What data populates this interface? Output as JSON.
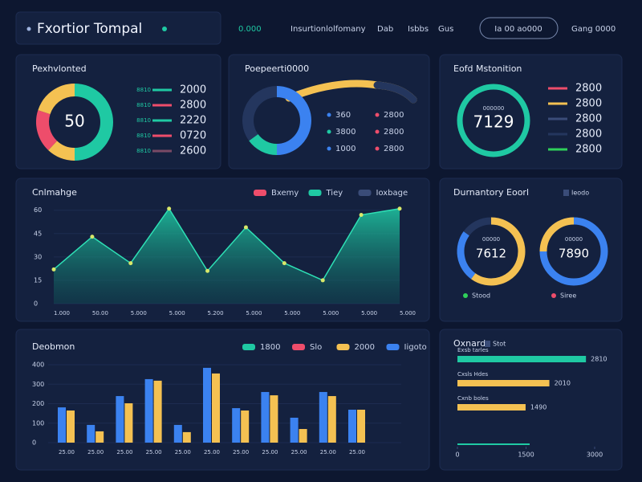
{
  "header": {
    "title": "Fxortior Tompal",
    "nav": [
      "0.000",
      "Insurtionlolfomany",
      "Dab",
      "Isbbs",
      "Gus"
    ],
    "button": "Ia 00 ao000",
    "user": "Gang 0000"
  },
  "chart_data": [
    {
      "type": "donut",
      "title": "Pexhvlonted",
      "center": 50,
      "values": [
        50,
        12,
        18,
        20
      ],
      "colors": [
        "#1fc9a3",
        "#f4c152",
        "#ee4d6b",
        "#f4c152"
      ],
      "legend": [
        {
          "name": "8810",
          "color": "#1fc9a3",
          "value": "2000"
        },
        {
          "name": "8810",
          "color": "#ee4d6b",
          "value": "2800"
        },
        {
          "name": "8810",
          "color": "#1fc9a3",
          "value": "2220"
        },
        {
          "name": "8810",
          "color": "#ee4d6b",
          "value": "0720"
        },
        {
          "name": "8810",
          "color": "#7a4a66",
          "value": "2600"
        }
      ]
    },
    {
      "type": "donut",
      "title": "Poepeerti0000",
      "values": [
        50,
        15,
        35
      ],
      "colors": [
        "#3b82f0",
        "#1fc9a3",
        "#24365e"
      ],
      "legend": [
        {
          "name": "360",
          "color": "#3b82f0"
        },
        {
          "name": "2800",
          "color": "#ee4d6b"
        },
        {
          "name": "3800",
          "color": "#1fc9a3"
        },
        {
          "name": "2800",
          "color": "#ee4d6b"
        },
        {
          "name": "1000",
          "color": "#3b82f0"
        },
        {
          "name": "2800",
          "color": "#ee4d6b"
        }
      ]
    },
    {
      "type": "donut",
      "title": "Eofd Mstonition",
      "center": "7129",
      "subtitle": "000000",
      "values": [
        100
      ],
      "colors": [
        "#1fc9a3"
      ],
      "legend": [
        {
          "color": "#ee4d6b",
          "value": "2800"
        },
        {
          "color": "#f4c152",
          "value": "2800"
        },
        {
          "color": "#3a4c78",
          "value": "2800"
        },
        {
          "color": "#24365e",
          "value": "2800"
        },
        {
          "color": "#2fd05a",
          "value": "2800"
        }
      ]
    },
    {
      "type": "area",
      "title": "Cnlmahge",
      "color": "#1fc9a3",
      "legend": [
        {
          "name": "Bxemy",
          "color": "#ee4d6b"
        },
        {
          "name": "Tiey",
          "color": "#1fc9a3"
        },
        {
          "name": "Ioxbage",
          "color": "#3a4c78"
        }
      ],
      "categories": [
        "1.000",
        "50.00",
        "5.000",
        "5.000",
        "5.200",
        "5.000",
        "5.000",
        "5.000",
        "5.000",
        "5.000"
      ],
      "values": [
        22,
        43,
        26,
        61,
        21,
        49,
        26,
        15,
        57,
        61
      ],
      "ylim": [
        0,
        65
      ],
      "yticks": [
        0,
        15,
        30,
        45,
        60
      ]
    },
    {
      "type": "donut",
      "title": "Durnantory Eoorl",
      "badge": "Ieodo",
      "center": "7612",
      "subtitle": "00000",
      "values": [
        60,
        25,
        15
      ],
      "colors": [
        "#f4c152",
        "#3b82f0",
        "#24365e"
      ],
      "legend": [
        {
          "name": "Stood",
          "color": "#2fd05a"
        }
      ]
    },
    {
      "type": "donut",
      "center": "7890",
      "subtitle": "00000",
      "values": [
        75,
        25
      ],
      "colors": [
        "#3b82f0",
        "#f4c152"
      ],
      "legend": [
        {
          "name": "Siree",
          "color": "#ee4d6b"
        }
      ]
    },
    {
      "type": "grouped-bar",
      "title": "Deobmon",
      "legend": [
        {
          "name": "1800",
          "color": "#1fc9a3"
        },
        {
          "name": "Slo",
          "color": "#ee4d6b"
        },
        {
          "name": "2000",
          "color": "#f4c152"
        },
        {
          "name": "Iigoto",
          "color": "#3b82f0"
        }
      ],
      "categories": [
        "25.00",
        "25.00",
        "25.00",
        "25.00",
        "25.00",
        "25.00",
        "25.00",
        "25.00",
        "25.00",
        "25.00",
        "25.00"
      ],
      "series": [
        {
          "name": "Iigoto",
          "color": "#3b82f0",
          "values": [
            181,
            91,
            239,
            326,
            91,
            384,
            177,
            260,
            128,
            260,
            169
          ]
        },
        {
          "name": "2000",
          "color": "#f4c152",
          "values": [
            165,
            58,
            202,
            318,
            54,
            355,
            165,
            243,
            70,
            239,
            169
          ]
        }
      ],
      "ylim": [
        0,
        400
      ],
      "yticks": [
        0,
        100,
        200,
        300,
        400
      ]
    },
    {
      "type": "hbar",
      "title": "Oxnard",
      "badge": "Stot",
      "categories": [
        "Exsb tarles",
        "Cxsls Hdes",
        "Cxnb boles"
      ],
      "values": [
        2810,
        2010,
        1490
      ],
      "colors": [
        "#1fc9a3",
        "#f4c152",
        "#f4c152"
      ],
      "xlim": [
        0,
        3000
      ],
      "xticks": [
        0,
        1500,
        3000
      ]
    }
  ]
}
